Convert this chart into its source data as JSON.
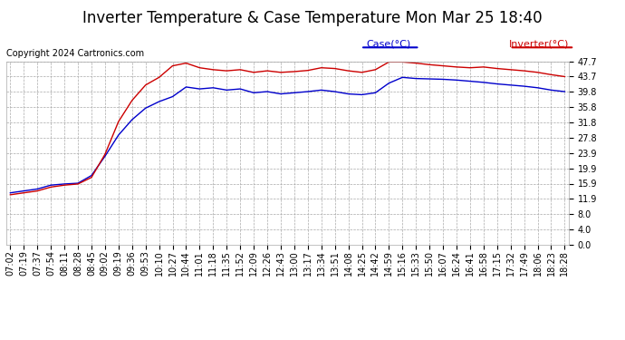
{
  "title": "Inverter Temperature & Case Temperature Mon Mar 25 18:40",
  "copyright": "Copyright 2024 Cartronics.com",
  "legend_case": "Case(°C)",
  "legend_inverter": "Inverter(°C)",
  "yticks": [
    0.0,
    4.0,
    8.0,
    11.9,
    15.9,
    19.9,
    23.9,
    27.8,
    31.8,
    35.8,
    39.8,
    43.7,
    47.7
  ],
  "xtick_labels": [
    "07:02",
    "07:19",
    "07:37",
    "07:54",
    "08:11",
    "08:28",
    "08:45",
    "09:02",
    "09:19",
    "09:36",
    "09:53",
    "10:10",
    "10:27",
    "10:44",
    "11:01",
    "11:18",
    "11:35",
    "11:52",
    "12:09",
    "12:26",
    "12:43",
    "13:00",
    "13:17",
    "13:34",
    "13:51",
    "14:08",
    "14:25",
    "14:42",
    "14:59",
    "15:16",
    "15:33",
    "15:50",
    "16:07",
    "16:24",
    "16:41",
    "16:58",
    "17:15",
    "17:32",
    "17:49",
    "18:06",
    "18:23",
    "18:28"
  ],
  "case_color": "#0000cc",
  "inverter_color": "#cc0000",
  "grid_color": "#aaaaaa",
  "bg_color": "#ffffff",
  "plot_bg": "#ffffff",
  "title_fontsize": 12,
  "copyright_fontsize": 7,
  "legend_fontsize": 8,
  "tick_fontsize": 7,
  "ymin": 0.0,
  "ymax": 47.7,
  "case_data": [
    13.5,
    14.0,
    14.5,
    15.5,
    15.8,
    16.0,
    18.0,
    23.0,
    28.5,
    32.5,
    35.5,
    37.2,
    38.5,
    41.0,
    40.5,
    40.8,
    40.2,
    40.5,
    39.5,
    39.8,
    39.2,
    39.5,
    39.8,
    40.2,
    39.8,
    39.2,
    39.0,
    39.5,
    42.0,
    43.5,
    43.2,
    43.1,
    43.0,
    42.8,
    42.5,
    42.2,
    41.8,
    41.5,
    41.2,
    40.8,
    40.2,
    39.8
  ],
  "inverter_data": [
    13.0,
    13.5,
    14.0,
    15.0,
    15.5,
    15.8,
    17.5,
    23.5,
    32.0,
    37.5,
    41.5,
    43.5,
    46.5,
    47.2,
    46.0,
    45.5,
    45.2,
    45.5,
    44.8,
    45.2,
    44.8,
    45.0,
    45.3,
    46.0,
    45.8,
    45.2,
    44.8,
    45.5,
    47.5,
    47.5,
    47.2,
    46.8,
    46.5,
    46.2,
    46.0,
    46.2,
    45.8,
    45.5,
    45.2,
    44.8,
    44.2,
    43.7
  ]
}
